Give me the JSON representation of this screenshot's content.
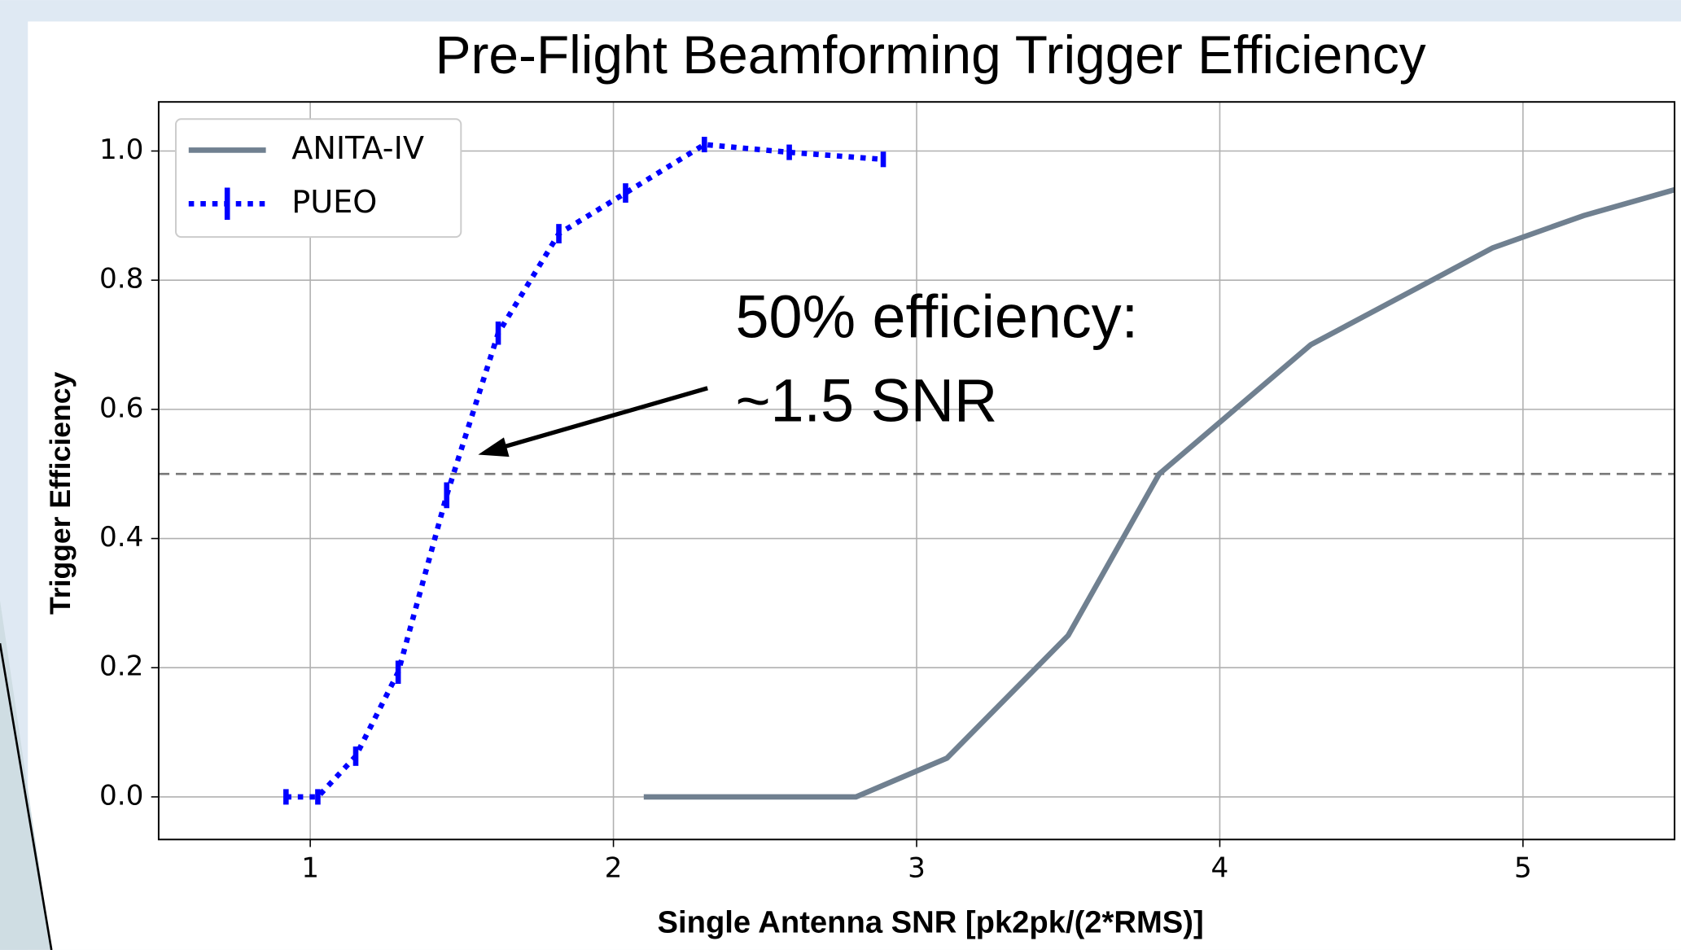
{
  "chart_data": {
    "type": "line",
    "title": "Pre-Flight Beamforming Trigger Efficiency",
    "x_label": "Single Antenna SNR [pk2pk/(2*RMS)]",
    "y_label": "Trigger Efficiency",
    "annotation": [
      "50% efficiency:",
      "~1.5 SNR"
    ],
    "reference_line": 0.5,
    "xlim": [
      0.5,
      5.5
    ],
    "ylim": [
      -0.066,
      1.076
    ],
    "xticks": [
      1,
      2,
      3,
      4,
      5
    ],
    "yticks": [
      {
        "value": 0,
        "label": "0.0"
      },
      0.2,
      0.4,
      0.6,
      0.8,
      {
        "value": 1,
        "label": "1.0"
      }
    ],
    "grid": true,
    "legend": "upper left",
    "series": [
      {
        "name": "ANITA-IV",
        "color": "#708090",
        "style": "solid",
        "x": [
          2.1,
          2.8,
          3.1,
          3.5,
          3.8,
          4.3,
          4.9,
          5.2,
          5.5
        ],
        "values": [
          0,
          0,
          0.06,
          0.25,
          0.5,
          0.7,
          0.85,
          0.9,
          0.94
        ]
      },
      {
        "name": "PUEO",
        "color": "#0000ff",
        "style": "dotted",
        "x": [
          0.92,
          1.025,
          1.15,
          1.29,
          1.45,
          1.62,
          1.82,
          2.04,
          2.3,
          2.58,
          2.89
        ],
        "values": [
          0,
          0,
          0.063,
          0.193,
          0.467,
          0.718,
          0.872,
          0.935,
          1.01,
          0.998,
          0.987
        ],
        "errors": [
          0.012,
          0.012,
          0.015,
          0.018,
          0.02,
          0.018,
          0.015,
          0.015,
          0.012,
          0.012,
          0.012
        ]
      }
    ]
  }
}
